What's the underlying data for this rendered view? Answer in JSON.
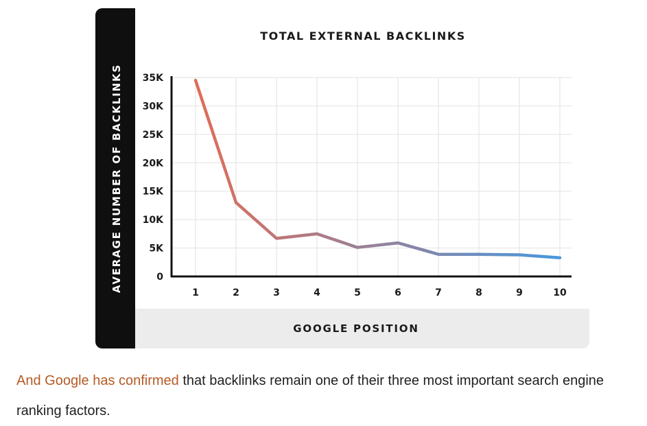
{
  "colors": {
    "sidebar": "#0f0f0f",
    "xaxis_band": "#ececec",
    "gridline": "#e2e2e2",
    "axis_line": "#111111",
    "line_start": "#e26c57",
    "line_end": "#4b97dc",
    "link": "#b65a24",
    "body_text": "#1f1f1f"
  },
  "chart_data": {
    "type": "line",
    "title": "TOTAL EXTERNAL BACKLINKS",
    "xlabel": "GOOGLE POSITION",
    "ylabel": "AVERAGE NUMBER OF BACKLINKS",
    "x": [
      1,
      2,
      3,
      4,
      5,
      6,
      7,
      8,
      9,
      10
    ],
    "x_tick_labels": [
      "1",
      "2",
      "3",
      "4",
      "5",
      "6",
      "7",
      "8",
      "9",
      "10"
    ],
    "y_ticks": [
      0,
      5000,
      10000,
      15000,
      20000,
      25000,
      30000,
      35000
    ],
    "y_tick_labels": [
      "0",
      "5K",
      "10K",
      "15K",
      "20K",
      "25K",
      "30K",
      "35K"
    ],
    "ylim": [
      0,
      35000
    ],
    "grid": true,
    "series": [
      {
        "values": [
          34500,
          13000,
          6700,
          7500,
          5100,
          5900,
          3900,
          3900,
          3800,
          3300
        ]
      }
    ]
  },
  "caption": {
    "link_text": "And Google has confirmed",
    "text": " that backlinks remain one of their three most important search engine ranking factors."
  }
}
